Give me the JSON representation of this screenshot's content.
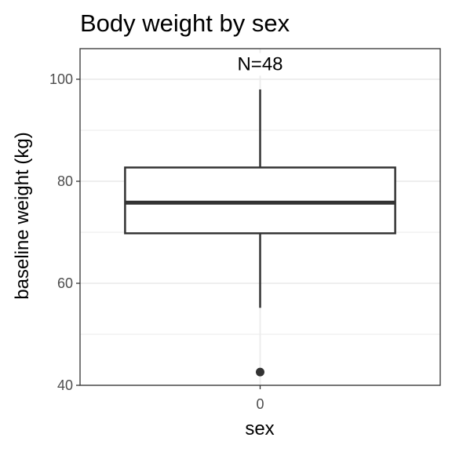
{
  "chart_data": {
    "type": "box",
    "title": "Body weight by sex",
    "xlabel": "sex",
    "ylabel": "baseline weight (kg)",
    "categories": [
      "0"
    ],
    "ylim": [
      40,
      106
    ],
    "yticks": [
      40,
      60,
      80,
      100
    ],
    "yticks_minor": [
      50,
      70,
      90
    ],
    "grid": true,
    "boxes": [
      {
        "category": "0",
        "whisker_low": 55.2,
        "q1": 69.8,
        "median": 75.8,
        "q3": 82.7,
        "whisker_high": 98,
        "outliers": [
          42.6
        ]
      }
    ],
    "annotations": [
      {
        "category": "0",
        "text": "N=48",
        "y": 103
      }
    ]
  }
}
